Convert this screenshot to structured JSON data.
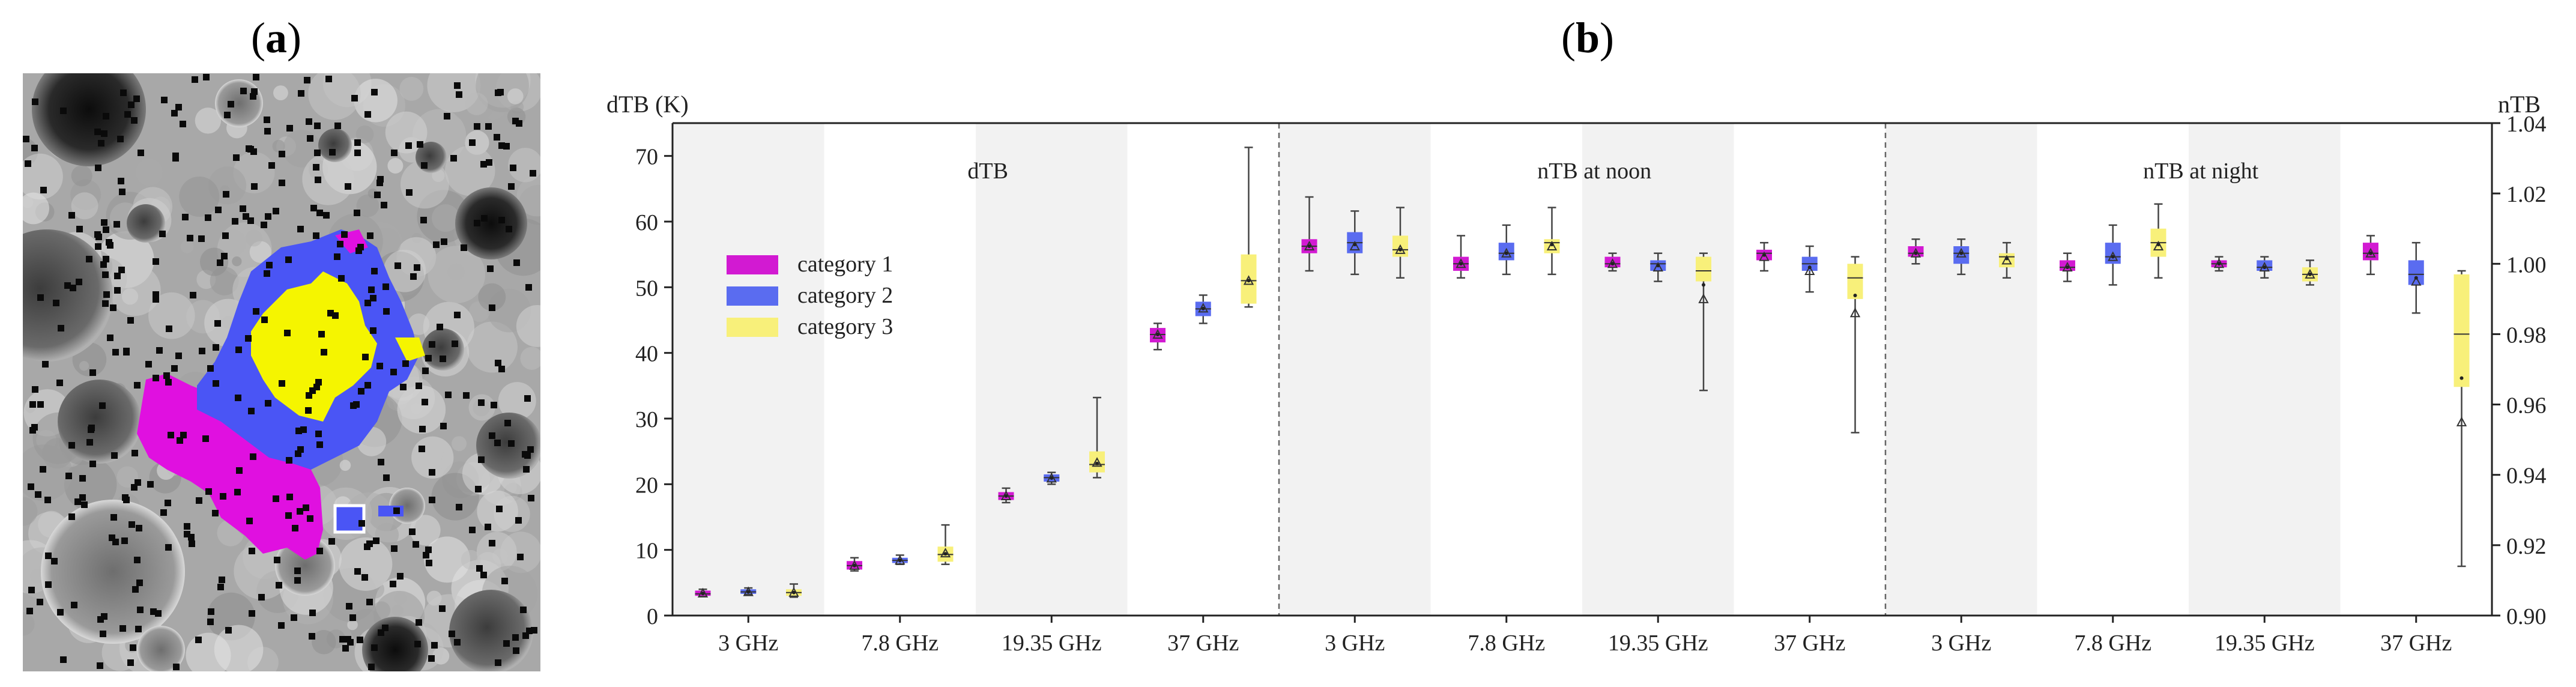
{
  "panels": {
    "a": {
      "open": "(",
      "letter": "a",
      "close": ")"
    },
    "b": {
      "open": "(",
      "letter": "b",
      "close": ")"
    }
  },
  "map": {
    "description_colors": {
      "category_1": "#e010e0",
      "category_2": "#4a55f5",
      "category_3": "#f5f500"
    }
  },
  "chart_data": {
    "type": "box",
    "left_axis_label": "dTB (K)",
    "right_axis_label": "nTB",
    "left_ylim": [
      0,
      75
    ],
    "left_ticks": [
      0,
      10,
      20,
      30,
      40,
      50,
      60,
      70
    ],
    "right_ylim": [
      0.9,
      1.04
    ],
    "right_ticks": [
      "0.90",
      "0.92",
      "0.94",
      "0.96",
      "0.98",
      "1.00",
      "1.02",
      "1.04"
    ],
    "frequencies": [
      "3 GHz",
      "7.8 GHz",
      "19.35 GHz",
      "37 GHz"
    ],
    "legend": [
      {
        "name": "category 1",
        "color": "#d21ad2"
      },
      {
        "name": "category 2",
        "color": "#5a6cf0"
      },
      {
        "name": "category 3",
        "color": "#f8f07a"
      }
    ],
    "groups": [
      {
        "title": "dTB",
        "axis": "left",
        "data": [
          [
            {
              "min": 3.0,
              "q1": 3.0,
              "med": 3.3,
              "q3": 3.8,
              "max": 4.0,
              "mean": 3.4
            },
            {
              "min": 3.2,
              "q1": 3.3,
              "med": 3.6,
              "q3": 4.0,
              "max": 4.2,
              "mean": 3.6
            },
            {
              "min": 2.8,
              "q1": 3.0,
              "med": 3.5,
              "q3": 4.0,
              "max": 4.8,
              "mean": 3.5
            }
          ],
          [
            {
              "min": 6.8,
              "q1": 7.0,
              "med": 7.6,
              "q3": 8.3,
              "max": 8.8,
              "mean": 7.6
            },
            {
              "min": 7.8,
              "q1": 8.0,
              "med": 8.4,
              "q3": 8.8,
              "max": 9.2,
              "mean": 8.4
            },
            {
              "min": 7.8,
              "q1": 8.2,
              "med": 9.3,
              "q3": 10.5,
              "max": 13.8,
              "mean": 9.5
            }
          ],
          [
            {
              "min": 17.2,
              "q1": 17.6,
              "med": 18.2,
              "q3": 18.8,
              "max": 19.4,
              "mean": 18.2
            },
            {
              "min": 20.0,
              "q1": 20.4,
              "med": 21.0,
              "q3": 21.5,
              "max": 21.8,
              "mean": 20.9
            },
            {
              "min": 21.0,
              "q1": 21.8,
              "med": 23.0,
              "q3": 25.0,
              "max": 33.2,
              "mean": 23.3
            }
          ],
          [
            {
              "min": 40.5,
              "q1": 41.6,
              "med": 42.8,
              "q3": 43.8,
              "max": 44.5,
              "mean": 42.8
            },
            {
              "min": 44.5,
              "q1": 45.6,
              "med": 46.7,
              "q3": 47.8,
              "max": 48.8,
              "mean": 46.8
            },
            {
              "min": 47.0,
              "q1": 47.5,
              "med": 51.0,
              "q3": 55.0,
              "max": 71.3,
              "mean": 51.0
            }
          ]
        ]
      },
      {
        "title": "nTB at noon",
        "axis": "right",
        "data": [
          [
            {
              "min": 0.998,
              "q1": 1.003,
              "med": 1.005,
              "q3": 1.007,
              "max": 1.019,
              "mean": 1.005
            },
            {
              "min": 0.997,
              "q1": 1.003,
              "med": 1.006,
              "q3": 1.009,
              "max": 1.015,
              "mean": 1.005
            },
            {
              "min": 0.996,
              "q1": 1.002,
              "med": 1.004,
              "q3": 1.008,
              "max": 1.016,
              "mean": 1.004
            }
          ],
          [
            {
              "min": 0.996,
              "q1": 0.998,
              "med": 1.0,
              "q3": 1.002,
              "max": 1.008,
              "mean": 1.0
            },
            {
              "min": 0.997,
              "q1": 1.001,
              "med": 1.003,
              "q3": 1.006,
              "max": 1.011,
              "mean": 1.003
            },
            {
              "min": 0.997,
              "q1": 1.003,
              "med": 1.006,
              "q3": 1.007,
              "max": 1.016,
              "mean": 1.005
            }
          ],
          [
            {
              "min": 0.998,
              "q1": 0.999,
              "med": 1.0,
              "q3": 1.002,
              "max": 1.003,
              "mean": 1.0
            },
            {
              "min": 0.995,
              "q1": 0.998,
              "med": 1.0,
              "q3": 1.001,
              "max": 1.003,
              "mean": 0.999
            },
            {
              "min": 0.964,
              "q1": 0.995,
              "med": 0.998,
              "q3": 1.002,
              "max": 1.003,
              "mean": 0.99
            }
          ],
          [
            {
              "min": 0.998,
              "q1": 1.001,
              "med": 1.003,
              "q3": 1.004,
              "max": 1.006,
              "mean": 1.002
            },
            {
              "min": 0.992,
              "q1": 0.998,
              "med": 1.0,
              "q3": 1.002,
              "max": 1.005,
              "mean": 0.998
            },
            {
              "min": 0.952,
              "q1": 0.99,
              "med": 0.996,
              "q3": 1.0,
              "max": 1.002,
              "mean": 0.986
            }
          ]
        ]
      },
      {
        "title": "nTB at night",
        "axis": "right",
        "data": [
          [
            {
              "min": 1.0,
              "q1": 1.002,
              "med": 1.003,
              "q3": 1.005,
              "max": 1.007,
              "mean": 1.003
            },
            {
              "min": 0.997,
              "q1": 1.0,
              "med": 1.003,
              "q3": 1.005,
              "max": 1.007,
              "mean": 1.003
            },
            {
              "min": 0.996,
              "q1": 0.999,
              "med": 1.002,
              "q3": 1.003,
              "max": 1.006,
              "mean": 1.001
            }
          ],
          [
            {
              "min": 0.995,
              "q1": 0.998,
              "med": 0.999,
              "q3": 1.001,
              "max": 1.003,
              "mean": 0.999
            },
            {
              "min": 0.994,
              "q1": 1.0,
              "med": 1.002,
              "q3": 1.006,
              "max": 1.011,
              "mean": 1.002
            },
            {
              "min": 0.996,
              "q1": 1.002,
              "med": 1.006,
              "q3": 1.01,
              "max": 1.017,
              "mean": 1.005
            }
          ],
          [
            {
              "min": 0.998,
              "q1": 0.999,
              "med": 1.0,
              "q3": 1.001,
              "max": 1.002,
              "mean": 1.0
            },
            {
              "min": 0.996,
              "q1": 0.998,
              "med": 0.999,
              "q3": 1.001,
              "max": 1.002,
              "mean": 0.999
            },
            {
              "min": 0.994,
              "q1": 0.995,
              "med": 0.997,
              "q3": 0.999,
              "max": 1.001,
              "mean": 0.997
            }
          ],
          [
            {
              "min": 0.997,
              "q1": 1.001,
              "med": 1.003,
              "q3": 1.006,
              "max": 1.008,
              "mean": 1.003
            },
            {
              "min": 0.986,
              "q1": 0.994,
              "med": 0.997,
              "q3": 1.001,
              "max": 1.006,
              "mean": 0.995
            },
            {
              "min": 0.914,
              "q1": 0.965,
              "med": 0.98,
              "q3": 0.997,
              "max": 0.998,
              "mean": 0.955
            }
          ]
        ]
      }
    ]
  }
}
